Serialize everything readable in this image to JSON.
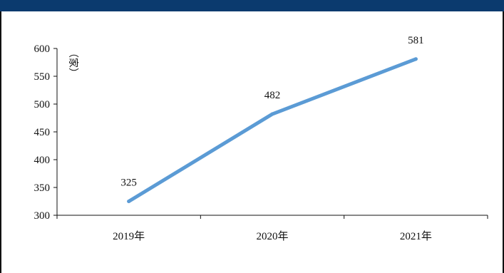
{
  "colors": {
    "top_bar": "#0b3a6e",
    "line": "#5b9bd5",
    "axis": "#111111"
  },
  "chart_data": {
    "type": "line",
    "title": "",
    "xlabel": "",
    "ylabel": "（家）",
    "categories": [
      "2019年",
      "2020年",
      "2021年"
    ],
    "series": [
      {
        "values": [
          325,
          482,
          581
        ]
      }
    ],
    "ylim": [
      300,
      600
    ],
    "yticks": [
      300,
      350,
      400,
      450,
      500,
      550,
      600
    ],
    "data_labels": [
      "325",
      "482",
      "581"
    ],
    "grid": false,
    "legend": "none"
  }
}
